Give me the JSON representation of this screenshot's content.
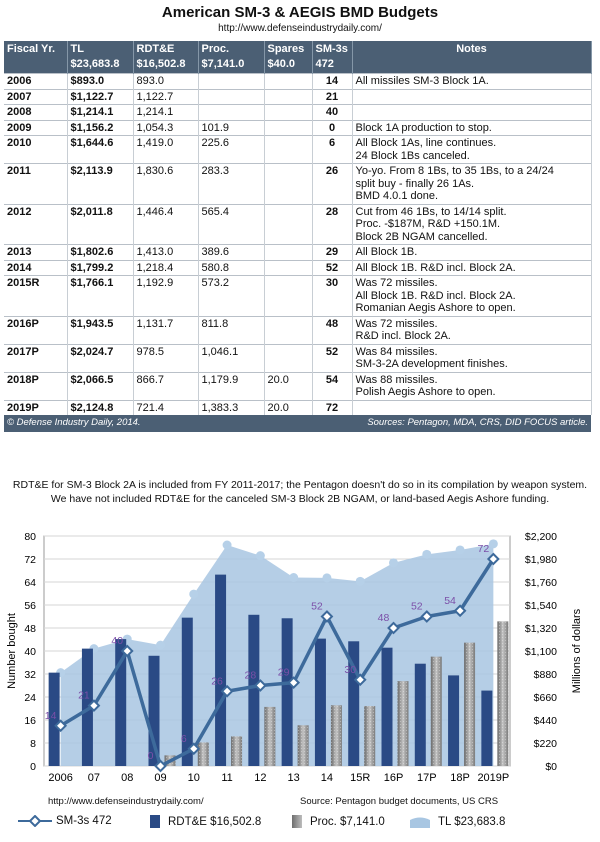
{
  "header": {
    "title": "American SM-3 & AEGIS BMD Budgets",
    "url": "http://www.defenseindustrydaily.com/"
  },
  "table": {
    "columns": [
      {
        "label": "Fiscal Yr.",
        "sub": ""
      },
      {
        "label": "TL",
        "sub": "$23,683.8"
      },
      {
        "label": "RDT&E",
        "sub": "$16,502.8"
      },
      {
        "label": "Proc.",
        "sub": "$7,141.0"
      },
      {
        "label": "Spares",
        "sub": "$40.0"
      },
      {
        "label": "SM-3s",
        "sub": "472"
      },
      {
        "label": "Notes",
        "sub": ""
      }
    ],
    "rows": [
      {
        "year": "2006",
        "tl": "$893.0",
        "rdte": "893.0",
        "proc": "",
        "spares": "",
        "sm3": "14",
        "notes": [
          "All missiles SM-3 Block 1A."
        ]
      },
      {
        "year": "2007",
        "tl": "$1,122.7",
        "rdte": "1,122.7",
        "proc": "",
        "spares": "",
        "sm3": "21",
        "notes": []
      },
      {
        "year": "2008",
        "tl": "$1,214.1",
        "rdte": "1,214.1",
        "proc": "",
        "spares": "",
        "sm3": "40",
        "notes": []
      },
      {
        "year": "2009",
        "tl": "$1,156.2",
        "rdte": "1,054.3",
        "proc": "101.9",
        "spares": "",
        "sm3": "0",
        "notes": [
          "Block 1A production to stop."
        ]
      },
      {
        "year": "2010",
        "tl": "$1,644.6",
        "rdte": "1,419.0",
        "proc": "225.6",
        "spares": "",
        "sm3": "6",
        "notes": [
          "All Block 1As, line continues.",
          "24 Block 1Bs canceled."
        ]
      },
      {
        "year": "2011",
        "tl": "$2,113.9",
        "rdte": "1,830.6",
        "proc": "283.3",
        "spares": "",
        "sm3": "26",
        "notes": [
          "Yo-yo. From 8 1Bs, to 35 1Bs, to a 24/24",
          "split buy - finally 26 1As.",
          "BMD 4.0.1 done."
        ]
      },
      {
        "year": "2012",
        "tl": "$2,011.8",
        "rdte": "1,446.4",
        "proc": "565.4",
        "spares": "",
        "sm3": "28",
        "notes": [
          "Cut from 46 1Bs, to 14/14 split.",
          "Proc. -$187M, R&D +150.1M.",
          "Block 2B NGAM cancelled."
        ]
      },
      {
        "year": "2013",
        "tl": "$1,802.6",
        "rdte": "1,413.0",
        "proc": "389.6",
        "spares": "",
        "sm3": "29",
        "notes": [
          "All Block 1B."
        ]
      },
      {
        "year": "2014",
        "tl": "$1,799.2",
        "rdte": "1,218.4",
        "proc": "580.8",
        "spares": "",
        "sm3": "52",
        "notes": [
          "All Block 1B. R&D incl. Block 2A."
        ]
      },
      {
        "year": "2015R",
        "tl": "$1,766.1",
        "rdte": "1,192.9",
        "proc": "573.2",
        "spares": "",
        "sm3": "30",
        "notes": [
          "Was 72 missiles.",
          "All Block 1B. R&D incl. Block 2A.",
          "Romanian Aegis Ashore to open."
        ]
      },
      {
        "year": "2016P",
        "tl": "$1,943.5",
        "rdte": "1,131.7",
        "proc": "811.8",
        "spares": "",
        "sm3": "48",
        "notes": [
          "Was 72 missiles.",
          "R&D incl. Block 2A."
        ]
      },
      {
        "year": "2017P",
        "tl": "$2,024.7",
        "rdte": "978.5",
        "proc": "1,046.1",
        "spares": "",
        "sm3": "52",
        "notes": [
          "Was 84 missiles.",
          "SM-3-2A development finishes."
        ]
      },
      {
        "year": "2018P",
        "tl": "$2,066.5",
        "rdte": "866.7",
        "proc": "1,179.9",
        "spares": "20.0",
        "sm3": "54",
        "notes": [
          "Was 88 missiles.",
          "Polish Aegis Ashore to open."
        ]
      },
      {
        "year": "2019P",
        "tl": "$2,124.8",
        "rdte": "721.4",
        "proc": "1,383.3",
        "spares": "20.0",
        "sm3": "72",
        "notes": []
      }
    ],
    "footer_left": "© Defense Industry Daily, 2014.",
    "footer_right": "Sources: Pentagon, MDA, CRS, DID FOCUS article."
  },
  "explanation": "RDT&E for SM-3 Block 2A is included from FY 2011-2017; the Pentagon doesn't do so in its compilation by weapon system. We have not included RDT&E for the canceled SM-3 Block 2B NGAM, or land-based Aegis Ashore funding.",
  "chart_data": {
    "type": "bar",
    "categories": [
      "2006",
      "07",
      "08",
      "09",
      "10",
      "11",
      "12",
      "13",
      "14",
      "15R",
      "16P",
      "17P",
      "18P",
      "2019P"
    ],
    "ylabel_left": "Number bought",
    "ylabel_right": "Millions of dollars",
    "ylim_left": [
      0,
      80
    ],
    "yticks_left": [
      0,
      8,
      16,
      24,
      32,
      40,
      48,
      56,
      64,
      72,
      80
    ],
    "ylim_right": [
      0,
      2200
    ],
    "yticks_right": [
      "$0",
      "$220",
      "$440",
      "$660",
      "$880",
      "$1,100",
      "$1,320",
      "$1,540",
      "$1,760",
      "$1,980",
      "$2,200"
    ],
    "series": [
      {
        "name": "SM-3s 472",
        "type": "line",
        "axis": "left",
        "color": "#3d6a9b",
        "values": [
          14,
          21,
          40,
          0,
          6,
          26,
          28,
          29,
          52,
          30,
          48,
          52,
          54,
          72
        ]
      },
      {
        "name": "RDT&E $16,502.8",
        "type": "bar",
        "axis": "right",
        "color": "#2a4a85",
        "values": [
          893.0,
          1122.7,
          1214.1,
          1054.3,
          1419.0,
          1830.6,
          1446.4,
          1413.0,
          1218.4,
          1192.9,
          1131.7,
          978.5,
          866.7,
          721.4
        ]
      },
      {
        "name": "Proc. $7,141.0",
        "type": "bar",
        "axis": "right",
        "color": "#8e8e8e",
        "values": [
          0,
          0,
          0,
          101.9,
          225.6,
          283.3,
          565.4,
          389.6,
          580.8,
          573.2,
          811.8,
          1046.1,
          1179.9,
          1383.3
        ]
      },
      {
        "name": "TL $23,683.8",
        "type": "area",
        "axis": "right",
        "color": "#a8c6e2",
        "values": [
          893.0,
          1122.7,
          1214.1,
          1156.2,
          1644.6,
          2113.9,
          2011.8,
          1802.6,
          1799.2,
          1766.1,
          1943.5,
          2024.7,
          2066.5,
          2124.8
        ]
      }
    ],
    "line_labels": [
      "14",
      "21",
      "40",
      "0",
      "6",
      "26",
      "28",
      "29",
      "52",
      "30",
      "48",
      "52",
      "54",
      "72"
    ],
    "source_left": "http://www.defenseindustrydaily.com/",
    "source_right": "Source: Pentagon budget documents, US CRS",
    "grid": true,
    "legend_position": "bottom"
  }
}
